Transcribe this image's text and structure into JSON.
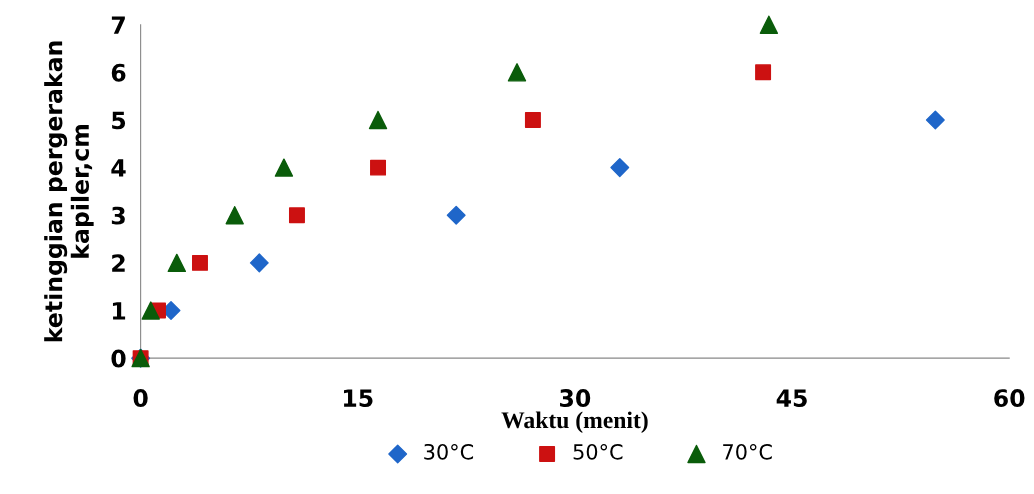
{
  "chart_data": {
    "type": "scatter",
    "xlabel": "Waktu (menit)",
    "ylabel": "ketinggian pergerakan\nkapiler,cm",
    "xlim": [
      0,
      60
    ],
    "xticks": [
      0,
      15,
      30,
      45,
      60
    ],
    "ylim": [
      0,
      7
    ],
    "yticks": [
      0,
      1,
      2,
      3,
      4,
      5,
      6,
      7
    ],
    "grid": false,
    "legend": "bottom",
    "series": [
      {
        "name": "30°C",
        "color": "#1f66c9",
        "marker": "diamond",
        "x": [
          0,
          2.1,
          8.2,
          21.8,
          33.1,
          54.9
        ],
        "values": [
          0,
          1,
          2,
          3,
          4,
          5
        ]
      },
      {
        "name": "50°C",
        "color": "#cc1111",
        "marker": "square",
        "x": [
          0,
          1.2,
          4.1,
          10.8,
          16.4,
          27.1,
          43.0
        ],
        "values": [
          0,
          1,
          2,
          3,
          4,
          5,
          6
        ]
      },
      {
        "name": "70°C",
        "color": "#0a5c0a",
        "marker": "triangle",
        "x": [
          0,
          0.7,
          2.5,
          6.5,
          9.9,
          16.4,
          26.0,
          43.4
        ],
        "values": [
          0,
          1,
          2,
          3,
          4,
          5,
          6,
          7
        ]
      }
    ]
  }
}
